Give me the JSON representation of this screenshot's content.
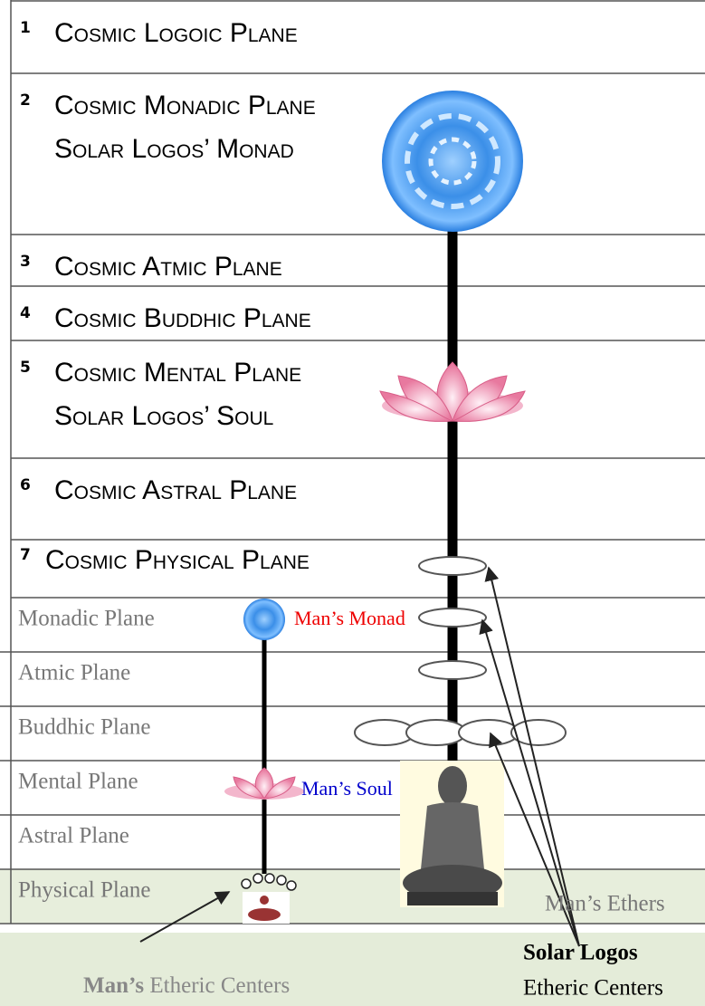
{
  "cosmic_planes": [
    {
      "number": "1",
      "name": "Cosmic Logoic Plane"
    },
    {
      "number": "2",
      "name": "Cosmic Monadic Plane",
      "note": "Solar Logos’ Monad"
    },
    {
      "number": "3",
      "name": "Cosmic Atmic Plane"
    },
    {
      "number": "4",
      "name": "Cosmic Buddhic Plane"
    },
    {
      "number": "5",
      "name": "Cosmic Mental Plane",
      "note": "Solar Logos’ Soul"
    },
    {
      "number": "6",
      "name": "Cosmic Astral Plane"
    },
    {
      "number": "7",
      "name": "Cosmic Physical Plane"
    }
  ],
  "planes": [
    "Monadic Plane",
    "Atmic Plane",
    "Buddhic Plane",
    "Mental Plane",
    "Astral Plane",
    "Physical Plane"
  ],
  "labels": {
    "mans_monad": "Man’s Monad",
    "mans_soul": "Man’s Soul",
    "mans_ethers": "Man’s Ethers",
    "solar_logos": "Solar Logos",
    "solar_etheric_centers": "Etheric Centers",
    "mans": "Man’s",
    "mans_etheric_centers": "Etheric Centers"
  }
}
